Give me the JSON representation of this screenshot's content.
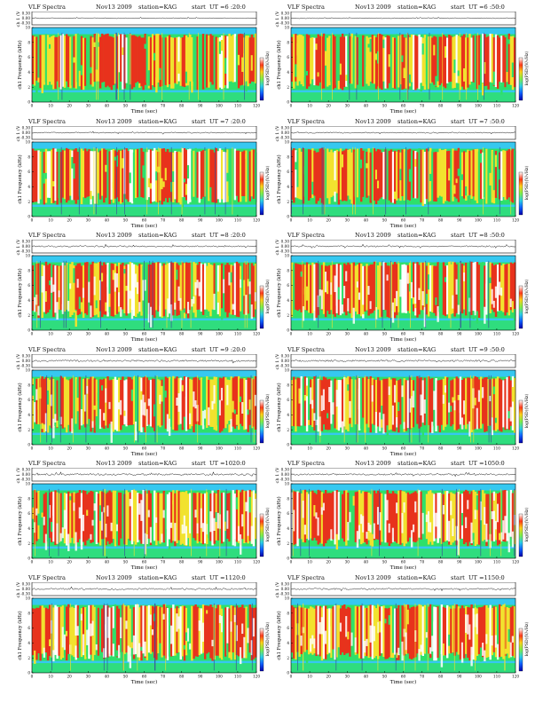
{
  "page_title": "",
  "colors": {
    "spec_low": "#36c8f0",
    "spec_mid": "#2ee06a",
    "spec_hi": "#f2e22e",
    "spec_top": "#e8321c",
    "spec_peak": "#ffffff",
    "colorbar": [
      "#ffffff",
      "#ff3a1a",
      "#ffd21a",
      "#7df04a",
      "#2ad0e8",
      "#1060ff",
      "#0000aa"
    ]
  },
  "chart_data": [
    {
      "type": "heatmap",
      "program": "VLF Spectra",
      "date": "Nov13 2009",
      "station": "station=KAG",
      "start": "start  UT =6 :20:0",
      "ylabel_wave": "ch 1 (V)",
      "wave_ticks": [
        "0.30",
        "0.00",
        "-0.30"
      ],
      "ylabel_spec": "ch1 Frequency  (kHz)",
      "freq_ticks": [
        "0",
        "2",
        "4",
        "6",
        "8",
        "10"
      ],
      "xlabel": "Time  (sec)",
      "x_ticks": [
        "0",
        "10",
        "20",
        "30",
        "40",
        "50",
        "60",
        "70",
        "80",
        "90",
        "100",
        "110",
        "120"
      ],
      "colorbar_label": "log(PSD)(V/√Hz)",
      "xlim": [
        0,
        120
      ],
      "ylim": [
        0,
        10
      ],
      "intensity": 0.42
    },
    {
      "type": "heatmap",
      "program": "VLF Spectra",
      "date": "Nov13 2009",
      "station": "station=KAG",
      "start": "start  UT =6 :50:0",
      "ylabel_wave": "ch 1 (V)",
      "wave_ticks": [
        "0.30",
        "0.00",
        "-0.30"
      ],
      "ylabel_spec": "ch1 Frequency  (kHz)",
      "freq_ticks": [
        "0",
        "2",
        "4",
        "6",
        "8",
        "10"
      ],
      "xlabel": "Time  (sec)",
      "x_ticks": [
        "0",
        "10",
        "20",
        "30",
        "40",
        "50",
        "60",
        "70",
        "80",
        "90",
        "100",
        "110",
        "120"
      ],
      "colorbar_label": "log(PSD)(V/√Hz)",
      "xlim": [
        0,
        120
      ],
      "ylim": [
        0,
        10
      ],
      "intensity": 0.45
    },
    {
      "type": "heatmap",
      "program": "VLF Spectra",
      "date": "Nov13 2009",
      "station": "station=KAG",
      "start": "start  UT =7 :20:0",
      "ylabel_wave": "ch 1 (V)",
      "wave_ticks": [
        "0.30",
        "0.00",
        "-0.30"
      ],
      "ylabel_spec": "ch1 Frequency  (kHz)",
      "freq_ticks": [
        "0",
        "2",
        "4",
        "6",
        "8",
        "10"
      ],
      "xlabel": "Time  (sec)",
      "x_ticks": [
        "0",
        "10",
        "20",
        "30",
        "40",
        "50",
        "60",
        "70",
        "80",
        "90",
        "100",
        "110",
        "120"
      ],
      "colorbar_label": "log(PSD)(V/√Hz)",
      "xlim": [
        0,
        120
      ],
      "ylim": [
        0,
        10
      ],
      "intensity": 0.55
    },
    {
      "type": "heatmap",
      "program": "VLF Spectra",
      "date": "Nov13 2009",
      "station": "station=KAG",
      "start": "start  UT =7 :50:0",
      "ylabel_wave": "ch 1 (V)",
      "wave_ticks": [
        "0.30",
        "0.00",
        "-0.30"
      ],
      "ylabel_spec": "ch1 Frequency  (kHz)",
      "freq_ticks": [
        "0",
        "2",
        "4",
        "6",
        "8",
        "10"
      ],
      "xlabel": "Time  (sec)",
      "x_ticks": [
        "0",
        "10",
        "20",
        "30",
        "40",
        "50",
        "60",
        "70",
        "80",
        "90",
        "100",
        "110",
        "120"
      ],
      "colorbar_label": "log(PSD)(V/√Hz)",
      "xlim": [
        0,
        120
      ],
      "ylim": [
        0,
        10
      ],
      "intensity": 0.55
    },
    {
      "type": "heatmap",
      "program": "VLF Spectra",
      "date": "Nov13 2009",
      "station": "station=KAG",
      "start": "start  UT =8 :20:0",
      "ylabel_wave": "ch 1 (V)",
      "wave_ticks": [
        "0.30",
        "0.00",
        "-0.30"
      ],
      "ylabel_spec": "ch1 Frequency  (kHz)",
      "freq_ticks": [
        "0",
        "2",
        "4",
        "6",
        "8",
        "10"
      ],
      "xlabel": "Time  (sec)",
      "x_ticks": [
        "0",
        "10",
        "20",
        "30",
        "40",
        "50",
        "60",
        "70",
        "80",
        "90",
        "100",
        "110",
        "120"
      ],
      "colorbar_label": "log(PSD)(V/√Hz)",
      "xlim": [
        0,
        120
      ],
      "ylim": [
        0,
        10
      ],
      "intensity": 0.68
    },
    {
      "type": "heatmap",
      "program": "VLF Spectra",
      "date": "Nov13 2009",
      "station": "station=KAG",
      "start": "start  UT =8 :50:0",
      "ylabel_wave": "ch 1 (V)",
      "wave_ticks": [
        "0.30",
        "0.00",
        "-0.30"
      ],
      "ylabel_spec": "ch1 Frequency  (kHz)",
      "freq_ticks": [
        "0",
        "2",
        "4",
        "6",
        "8",
        "10"
      ],
      "xlabel": "Time  (sec)",
      "x_ticks": [
        "0",
        "10",
        "20",
        "30",
        "40",
        "50",
        "60",
        "70",
        "80",
        "90",
        "100",
        "110",
        "120"
      ],
      "colorbar_label": "log(PSD)(V/√Hz)",
      "xlim": [
        0,
        120
      ],
      "ylim": [
        0,
        10
      ],
      "intensity": 0.68
    },
    {
      "type": "heatmap",
      "program": "VLF Spectra",
      "date": "Nov13 2009",
      "station": "station=KAG",
      "start": "start  UT =9 :20:0",
      "ylabel_wave": "ch 1 (V)",
      "wave_ticks": [
        "0.30",
        "0.00",
        "-0.30"
      ],
      "ylabel_spec": "ch1 Frequency  (kHz)",
      "freq_ticks": [
        "0",
        "2",
        "4",
        "6",
        "8",
        "10"
      ],
      "xlabel": "Time  (sec)",
      "x_ticks": [
        "0",
        "10",
        "20",
        "30",
        "40",
        "50",
        "60",
        "70",
        "80",
        "90",
        "100",
        "110",
        "120"
      ],
      "colorbar_label": "log(PSD)(V/√Hz)",
      "xlim": [
        0,
        120
      ],
      "ylim": [
        0,
        10
      ],
      "intensity": 0.82
    },
    {
      "type": "heatmap",
      "program": "VLF Spectra",
      "date": "Nov13 2009",
      "station": "station=KAG",
      "start": "start  UT =9 :50:0",
      "ylabel_wave": "ch 1 (V)",
      "wave_ticks": [
        "0.30",
        "0.00",
        "-0.30"
      ],
      "ylabel_spec": "ch1 Frequency  (kHz)",
      "freq_ticks": [
        "0",
        "2",
        "4",
        "6",
        "8",
        "10"
      ],
      "xlabel": "Time  (sec)",
      "x_ticks": [
        "0",
        "10",
        "20",
        "30",
        "40",
        "50",
        "60",
        "70",
        "80",
        "90",
        "100",
        "110",
        "120"
      ],
      "colorbar_label": "log(PSD)(V/√Hz)",
      "xlim": [
        0,
        120
      ],
      "ylim": [
        0,
        10
      ],
      "intensity": 0.88
    },
    {
      "type": "heatmap",
      "program": "VLF Spectra",
      "date": "Nov13 2009",
      "station": "station=KAG",
      "start": "start  UT =1020:0",
      "ylabel_wave": "ch 1 (V)",
      "wave_ticks": [
        "0.30",
        "0.00",
        "-0.30"
      ],
      "ylabel_spec": "ch1 Frequency  (kHz)",
      "freq_ticks": [
        "0",
        "2",
        "4",
        "6",
        "8",
        "10"
      ],
      "xlabel": "Time  (sec)",
      "x_ticks": [
        "0",
        "10",
        "20",
        "30",
        "40",
        "50",
        "60",
        "70",
        "80",
        "90",
        "100",
        "110",
        "120"
      ],
      "colorbar_label": "log(PSD)(V/√Hz)",
      "xlim": [
        0,
        120
      ],
      "ylim": [
        0,
        10
      ],
      "intensity": 0.85
    },
    {
      "type": "heatmap",
      "program": "VLF Spectra",
      "date": "Nov13 2009",
      "station": "station=KAG",
      "start": "start  UT =1050:0",
      "ylabel_wave": "ch 1 (V)",
      "wave_ticks": [
        "0.30",
        "0.00",
        "-0.30"
      ],
      "ylabel_spec": "ch1 Frequency  (kHz)",
      "freq_ticks": [
        "0",
        "2",
        "4",
        "6",
        "8",
        "10"
      ],
      "xlabel": "Time  (sec)",
      "x_ticks": [
        "0",
        "10",
        "20",
        "30",
        "40",
        "50",
        "60",
        "70",
        "80",
        "90",
        "100",
        "110",
        "120"
      ],
      "colorbar_label": "log(PSD)(V/√Hz)",
      "xlim": [
        0,
        120
      ],
      "ylim": [
        0,
        10
      ],
      "intensity": 0.8
    },
    {
      "type": "heatmap",
      "program": "VLF Spectra",
      "date": "Nov13 2009",
      "station": "station=KAG",
      "start": "start  UT =1120:0",
      "ylabel_wave": "ch 1 (V)",
      "wave_ticks": [
        "0.30",
        "0.00",
        "-0.30"
      ],
      "ylabel_spec": "ch1 Frequency  (kHz)",
      "freq_ticks": [
        "0",
        "2",
        "4",
        "6",
        "8",
        "10"
      ],
      "xlabel": "Time  (sec)",
      "x_ticks": [
        "0",
        "10",
        "20",
        "30",
        "40",
        "50",
        "60",
        "70",
        "80",
        "90",
        "100",
        "110",
        "120"
      ],
      "colorbar_label": "log(PSD)(V/√Hz)",
      "xlim": [
        0,
        120
      ],
      "ylim": [
        0,
        10
      ],
      "intensity": 0.75
    },
    {
      "type": "heatmap",
      "program": "VLF Spectra",
      "date": "Nov13 2009",
      "station": "station=KAG",
      "start": "start  UT =1150:0",
      "ylabel_wave": "ch 1 (V)",
      "wave_ticks": [
        "0.30",
        "0.00",
        "-0.30"
      ],
      "ylabel_spec": "ch1 Frequency  (kHz)",
      "freq_ticks": [
        "0",
        "2",
        "4",
        "6",
        "8",
        "10"
      ],
      "xlabel": "Time  (sec)",
      "x_ticks": [
        "0",
        "10",
        "20",
        "30",
        "40",
        "50",
        "60",
        "70",
        "80",
        "90",
        "100",
        "110",
        "120"
      ],
      "colorbar_label": "log(PSD)(V/√Hz)",
      "xlim": [
        0,
        120
      ],
      "ylim": [
        0,
        10
      ],
      "intensity": 0.75
    }
  ]
}
